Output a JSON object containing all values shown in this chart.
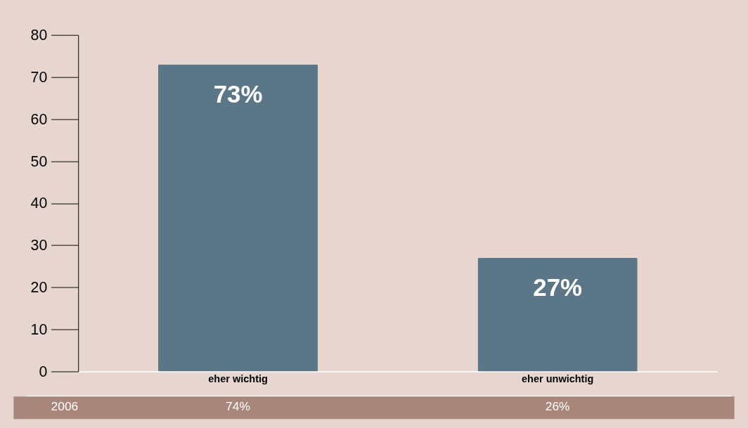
{
  "chart_data": {
    "type": "bar",
    "categories": [
      "eher wichtig",
      "eher unwichtig"
    ],
    "values": [
      73,
      27
    ],
    "value_labels": [
      "73%",
      "27%"
    ],
    "color": "#5b7787",
    "ylim": [
      0,
      80
    ],
    "yticks": [
      0,
      10,
      20,
      30,
      40,
      50,
      60,
      70,
      80
    ],
    "grid": false,
    "annotations": [
      "2006",
      "74%",
      "26%"
    ]
  }
}
